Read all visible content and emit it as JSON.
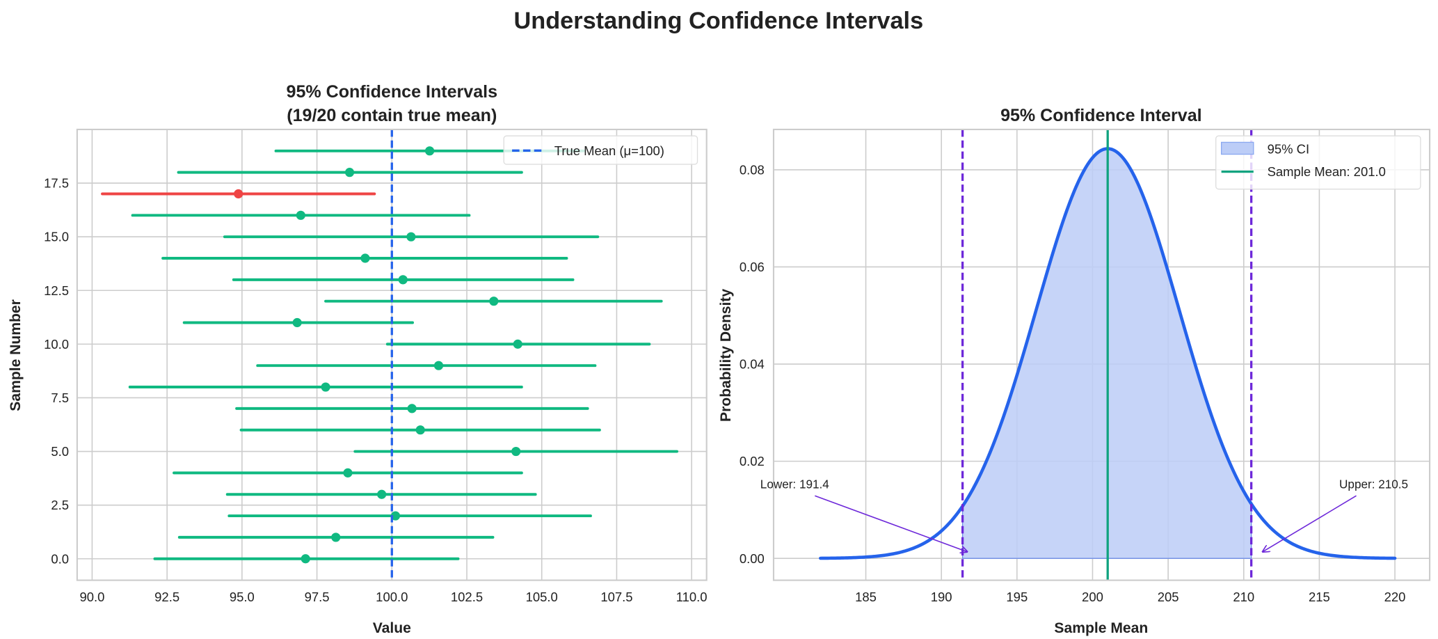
{
  "suptitle": "Understanding Confidence Intervals",
  "colors": {
    "contains": "#10b981",
    "misses": "#ef4444",
    "true_mean": "#2563eb",
    "curve": "#2563eb",
    "ci_fill": "#bccdf7",
    "ci_bounds": "#6d28d9",
    "sample_mean": "#10a37f"
  },
  "chart_data": [
    {
      "type": "errorbar",
      "title_line1": "95% Confidence Intervals",
      "title_line2": "(19/20 contain true mean)",
      "xlabel": "Value",
      "ylabel": "Sample Number",
      "xlim": [
        89.5,
        110.5
      ],
      "ylim": [
        -1,
        20
      ],
      "xticks": [
        "90.0",
        "92.5",
        "95.0",
        "97.5",
        "100.0",
        "102.5",
        "105.0",
        "107.5",
        "110.0"
      ],
      "yticks": [
        "0.0",
        "2.5",
        "5.0",
        "7.5",
        "10.0",
        "12.5",
        "15.0",
        "17.5"
      ],
      "grid": true,
      "true_mean": 100,
      "legend": {
        "position": "upper right",
        "entries": [
          "True Mean (μ=100)"
        ]
      },
      "samples": [
        {
          "sample": 0,
          "mean": 97.12,
          "lower": 92.09,
          "upper": 102.21,
          "contains": true
        },
        {
          "sample": 1,
          "mean": 98.13,
          "lower": 92.91,
          "upper": 103.37,
          "contains": true
        },
        {
          "sample": 2,
          "mean": 100.12,
          "lower": 94.57,
          "upper": 106.63,
          "contains": true
        },
        {
          "sample": 3,
          "mean": 99.66,
          "lower": 94.51,
          "upper": 104.79,
          "contains": true
        },
        {
          "sample": 4,
          "mean": 98.53,
          "lower": 92.73,
          "upper": 104.33,
          "contains": true
        },
        {
          "sample": 5,
          "mean": 104.14,
          "lower": 98.77,
          "upper": 109.51,
          "contains": true
        },
        {
          "sample": 6,
          "mean": 100.95,
          "lower": 94.97,
          "upper": 106.93,
          "contains": true
        },
        {
          "sample": 7,
          "mean": 100.67,
          "lower": 94.82,
          "upper": 106.53,
          "contains": true
        },
        {
          "sample": 8,
          "mean": 97.79,
          "lower": 91.26,
          "upper": 104.33,
          "contains": true
        },
        {
          "sample": 9,
          "mean": 101.56,
          "lower": 95.52,
          "upper": 106.78,
          "contains": true
        },
        {
          "sample": 10,
          "mean": 104.2,
          "lower": 99.85,
          "upper": 108.59,
          "contains": true
        },
        {
          "sample": 11,
          "mean": 96.84,
          "lower": 93.07,
          "upper": 100.69,
          "contains": true
        },
        {
          "sample": 12,
          "mean": 103.4,
          "lower": 97.79,
          "upper": 108.99,
          "contains": true
        },
        {
          "sample": 13,
          "mean": 100.37,
          "lower": 94.72,
          "upper": 106.04,
          "contains": true
        },
        {
          "sample": 14,
          "mean": 99.11,
          "lower": 92.36,
          "upper": 105.83,
          "contains": true
        },
        {
          "sample": 15,
          "mean": 100.64,
          "lower": 94.42,
          "upper": 106.87,
          "contains": true
        },
        {
          "sample": 16,
          "mean": 96.96,
          "lower": 91.35,
          "upper": 102.58,
          "contains": true
        },
        {
          "sample": 17,
          "mean": 94.88,
          "lower": 90.34,
          "upper": 99.42,
          "contains": false
        },
        {
          "sample": 18,
          "mean": 98.59,
          "lower": 92.88,
          "upper": 104.33,
          "contains": true
        },
        {
          "sample": 19,
          "mean": 101.26,
          "lower": 96.13,
          "upper": 106.4,
          "contains": true
        }
      ]
    },
    {
      "type": "line",
      "title": "95% Confidence Interval",
      "xlabel": "Sample Mean",
      "ylabel": "Probability Density",
      "xlim": [
        178.9,
        222.3
      ],
      "ylim": [
        -0.0045,
        0.0883
      ],
      "xticks": [
        "185",
        "190",
        "195",
        "200",
        "205",
        "210",
        "215",
        "220"
      ],
      "yticks": [
        "0.00",
        "0.02",
        "0.04",
        "0.06",
        "0.08"
      ],
      "grid": true,
      "distribution": {
        "kind": "normal",
        "mean": 201.0,
        "sd": 4.73,
        "x_range": [
          182,
          220
        ]
      },
      "ci": {
        "lower": 191.4,
        "upper": 210.5
      },
      "sample_mean": 201.0,
      "legend": {
        "position": "upper right",
        "entries": [
          "95% CI",
          "Sample Mean: 201.0"
        ]
      },
      "annotations": {
        "lower": "Lower: 191.4",
        "upper": "Upper: 210.5"
      }
    }
  ]
}
